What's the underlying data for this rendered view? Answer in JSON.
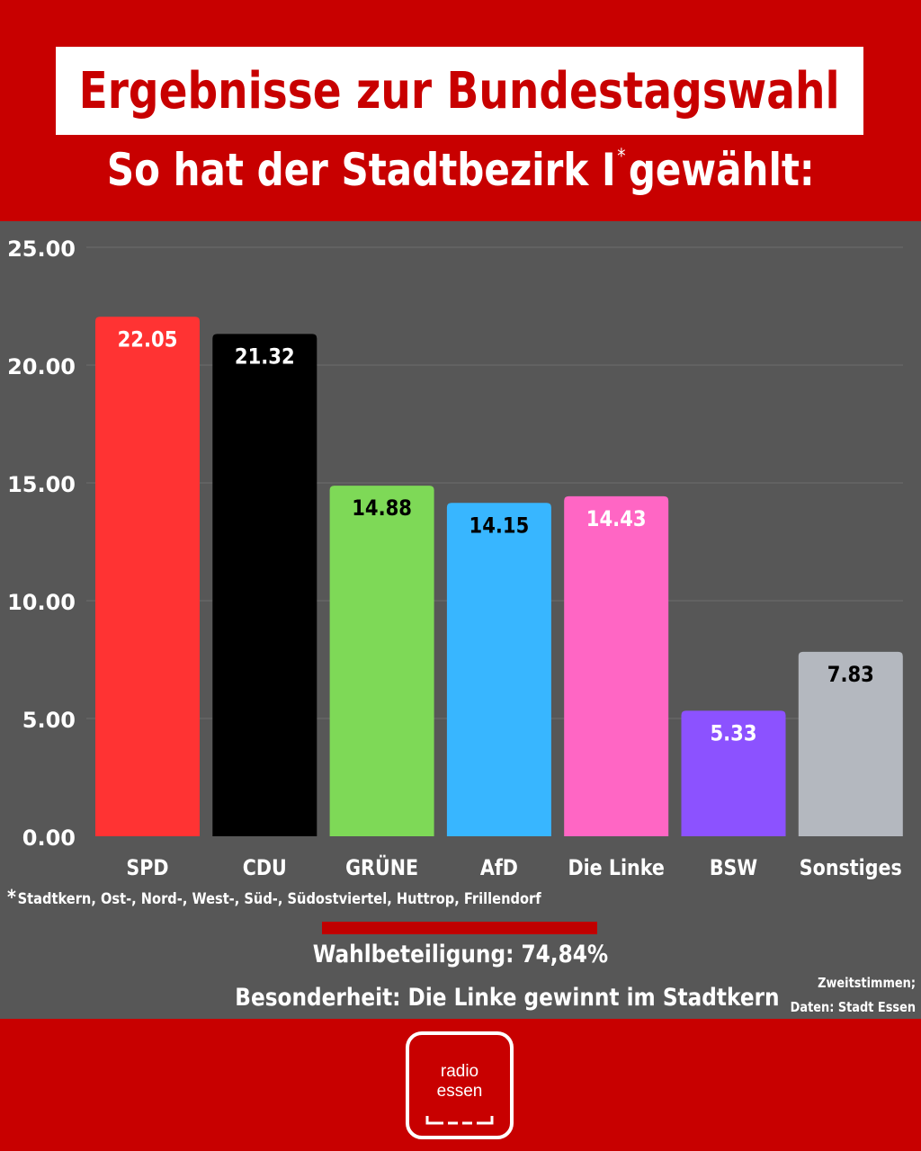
{
  "header": {
    "title": "Ergebnisse zur Bundestagswahl",
    "subtitle_main": "So hat der Stadtbezirk I",
    "subtitle_mark": "*",
    "subtitle_end": "gewählt:"
  },
  "chart_data": {
    "type": "bar",
    "categories": [
      "SPD",
      "CDU",
      "GRÜNE",
      "AfD",
      "Die Linke",
      "BSW",
      "Sonstiges"
    ],
    "values": [
      22.05,
      21.32,
      14.88,
      14.15,
      14.43,
      5.33,
      7.83
    ],
    "value_labels": [
      "22.05",
      "21.32",
      "14.88",
      "14.15",
      "14.43",
      "5.33",
      "7.83"
    ],
    "colors": [
      "#ff3333",
      "#000000",
      "#7ed957",
      "#38b6ff",
      "#ff66c4",
      "#8c52ff",
      "#b4b8bf"
    ],
    "label_colors": [
      "#ffffff",
      "#ffffff",
      "#000000",
      "#000000",
      "#ffffff",
      "#ffffff",
      "#000000"
    ],
    "yticks": [
      "0.00",
      "5.00",
      "10.00",
      "15.00",
      "20.00",
      "25.00"
    ],
    "ylim": [
      0,
      25
    ],
    "grid": true,
    "title": "",
    "xlabel": "",
    "ylabel": ""
  },
  "footnote": {
    "mark": "*",
    "text": "Stadtkern, Ost-, Nord-, West-, Süd-, Südostviertel, Huttrop, Frillendorf"
  },
  "turnout": "Wahlbeteiligung: 74,84%",
  "special": "Besonderheit: Die Linke gewinnt im Stadtkern",
  "source": {
    "line1": "Zweitstimmen;",
    "line2": "Daten: Stadt Essen"
  },
  "logo": {
    "line1": "radio",
    "line2": "essen"
  },
  "colors": {
    "brand_red": "#c80000",
    "chart_background": "#575757"
  }
}
